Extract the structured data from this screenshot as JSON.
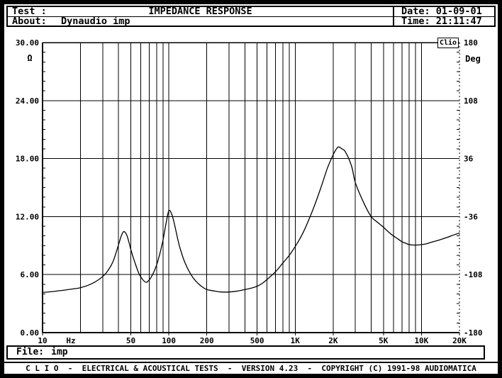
{
  "header": {
    "test_label": "Test :",
    "title": "IMPEDANCE RESPONSE",
    "about_label": "About:",
    "about_value": "Dynaudio imp",
    "date_label": "Date:",
    "date_value": "01-09-01",
    "time_label": "Time:",
    "time_value": "21:11:47"
  },
  "badge": "Clio",
  "file_bar": {
    "label": "File:",
    "value": "imp"
  },
  "footer": {
    "text": "C L I O  -  ELECTRICAL & ACOUSTICAL TESTS  -  VERSION 4.23  -  COPYRIGHT (C) 1991-98 AUDIOMATICA"
  },
  "chart_data": {
    "type": "line",
    "title": "IMPEDANCE RESPONSE",
    "grid": true,
    "x": {
      "scale": "log",
      "min": 10,
      "max": 20000,
      "unit": "Hz",
      "ticks": [
        {
          "v": 10,
          "label": "10"
        },
        {
          "v": 50,
          "label": "50"
        },
        {
          "v": 100,
          "label": "100"
        },
        {
          "v": 200,
          "label": "200"
        },
        {
          "v": 500,
          "label": "500"
        },
        {
          "v": 1000,
          "label": "1K"
        },
        {
          "v": 2000,
          "label": "2K"
        },
        {
          "v": 5000,
          "label": "5K"
        },
        {
          "v": 10000,
          "label": "10K"
        },
        {
          "v": 20000,
          "label": "20K"
        }
      ],
      "gridlines": [
        20,
        30,
        40,
        50,
        60,
        70,
        80,
        90,
        100,
        200,
        300,
        400,
        500,
        600,
        700,
        800,
        900,
        1000,
        2000,
        3000,
        4000,
        5000,
        6000,
        7000,
        8000,
        9000,
        10000
      ]
    },
    "y_left": {
      "min": 0,
      "max": 30,
      "unit": "Ω",
      "ticks": [
        {
          "v": 30,
          "label": "30.00"
        },
        {
          "v": 24,
          "label": "24.00"
        },
        {
          "v": 18,
          "label": "18.00"
        },
        {
          "v": 12,
          "label": "12.00"
        },
        {
          "v": 6,
          "label": "6.00"
        },
        {
          "v": 0,
          "label": "0.00"
        }
      ],
      "gridlines": [
        6,
        12,
        18,
        24
      ]
    },
    "y_right": {
      "min": -180,
      "max": 180,
      "unit": "Deg",
      "ticks": [
        {
          "v": 180,
          "label": "180"
        },
        {
          "v": 108,
          "label": "108"
        },
        {
          "v": 36,
          "label": "36"
        },
        {
          "v": -36,
          "label": "-36"
        },
        {
          "v": -108,
          "label": "-108"
        },
        {
          "v": -180,
          "label": "-180"
        }
      ]
    },
    "series": [
      {
        "name": "impedance",
        "unit": "ohm",
        "points": [
          [
            10,
            4.15
          ],
          [
            12,
            4.25
          ],
          [
            15,
            4.4
          ],
          [
            18,
            4.55
          ],
          [
            20,
            4.65
          ],
          [
            24,
            5.0
          ],
          [
            28,
            5.5
          ],
          [
            32,
            6.2
          ],
          [
            36,
            7.3
          ],
          [
            40,
            9.1
          ],
          [
            42,
            10.0
          ],
          [
            44,
            10.45
          ],
          [
            46,
            10.2
          ],
          [
            48,
            9.5
          ],
          [
            50,
            8.6
          ],
          [
            54,
            7.2
          ],
          [
            58,
            6.1
          ],
          [
            62,
            5.5
          ],
          [
            66,
            5.2
          ],
          [
            70,
            5.45
          ],
          [
            75,
            6.1
          ],
          [
            80,
            7.0
          ],
          [
            85,
            8.2
          ],
          [
            90,
            9.6
          ],
          [
            95,
            11.3
          ],
          [
            100,
            12.6
          ],
          [
            105,
            12.3
          ],
          [
            110,
            11.4
          ],
          [
            120,
            9.2
          ],
          [
            130,
            7.7
          ],
          [
            140,
            6.7
          ],
          [
            155,
            5.7
          ],
          [
            170,
            5.1
          ],
          [
            185,
            4.7
          ],
          [
            200,
            4.45
          ],
          [
            230,
            4.3
          ],
          [
            260,
            4.2
          ],
          [
            300,
            4.2
          ],
          [
            350,
            4.3
          ],
          [
            400,
            4.45
          ],
          [
            450,
            4.6
          ],
          [
            500,
            4.8
          ],
          [
            550,
            5.1
          ],
          [
            600,
            5.5
          ],
          [
            700,
            6.3
          ],
          [
            800,
            7.2
          ],
          [
            900,
            8.0
          ],
          [
            1000,
            8.9
          ],
          [
            1100,
            9.8
          ],
          [
            1200,
            10.8
          ],
          [
            1400,
            12.9
          ],
          [
            1600,
            15.0
          ],
          [
            1800,
            17.0
          ],
          [
            2000,
            18.4
          ],
          [
            2100,
            18.9
          ],
          [
            2200,
            19.2
          ],
          [
            2350,
            19.0
          ],
          [
            2500,
            18.7
          ],
          [
            2800,
            17.2
          ],
          [
            3000,
            15.5
          ],
          [
            3500,
            13.4
          ],
          [
            4000,
            12.0
          ],
          [
            4500,
            11.4
          ],
          [
            5000,
            10.9
          ],
          [
            5500,
            10.4
          ],
          [
            6000,
            10.0
          ],
          [
            6500,
            9.7
          ],
          [
            7000,
            9.4
          ],
          [
            7500,
            9.25
          ],
          [
            8000,
            9.1
          ],
          [
            9000,
            9.05
          ],
          [
            10000,
            9.1
          ],
          [
            11000,
            9.2
          ],
          [
            12000,
            9.35
          ],
          [
            14000,
            9.6
          ],
          [
            16000,
            9.85
          ],
          [
            18000,
            10.1
          ],
          [
            20000,
            10.3
          ]
        ]
      }
    ]
  }
}
